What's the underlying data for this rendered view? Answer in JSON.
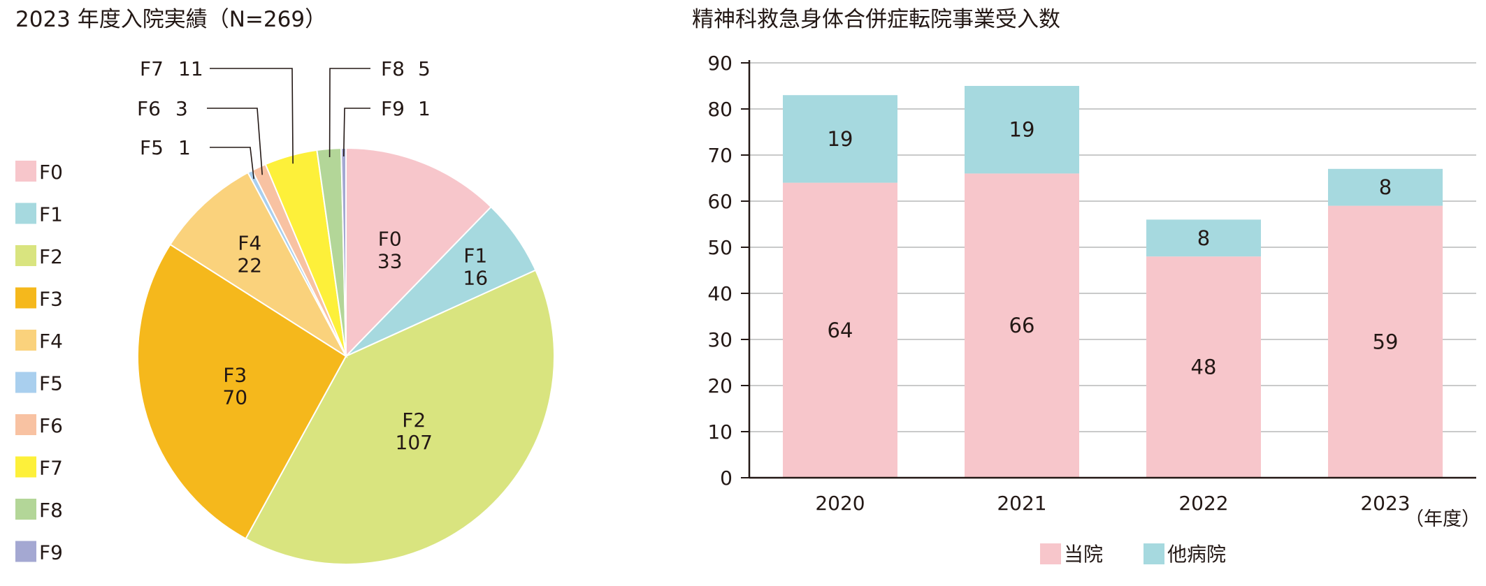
{
  "chart_data": [
    {
      "type": "pie",
      "title": "2023 年度入院実績（N=269）",
      "slices": [
        {
          "label": "F0",
          "value": 33,
          "color": "#F7C6CB"
        },
        {
          "label": "F1",
          "value": 16,
          "color": "#A6D9DF"
        },
        {
          "label": "F2",
          "value": 107,
          "color": "#D9E47F"
        },
        {
          "label": "F3",
          "value": 70,
          "color": "#F5B81C"
        },
        {
          "label": "F4",
          "value": 22,
          "color": "#FAD27C"
        },
        {
          "label": "F5",
          "value": 1,
          "color": "#A9CFEE"
        },
        {
          "label": "F6",
          "value": 3,
          "color": "#F8C2A2"
        },
        {
          "label": "F7",
          "value": 11,
          "color": "#FDF03A"
        },
        {
          "label": "F8",
          "value": 5,
          "color": "#B3D698"
        },
        {
          "label": "F9",
          "value": 1,
          "color": "#A4A8D2"
        }
      ],
      "legend": [
        "F0",
        "F1",
        "F2",
        "F3",
        "F4",
        "F5",
        "F6",
        "F7",
        "F8",
        "F9"
      ],
      "legend_position": "left"
    },
    {
      "type": "bar",
      "stacked": true,
      "title": "精神科救急身体合併症転院事業受入数",
      "categories": [
        "2020",
        "2021",
        "2022",
        "2023"
      ],
      "series": [
        {
          "name": "当院",
          "values": [
            64,
            66,
            48,
            59
          ],
          "color": "#F7C6CB"
        },
        {
          "name": "他病院",
          "values": [
            19,
            19,
            8,
            8
          ],
          "color": "#A6D9DF"
        }
      ],
      "xlabel": "（年度）",
      "ylim": [
        0,
        90
      ],
      "yticks": [
        0,
        10,
        20,
        30,
        40,
        50,
        60,
        70,
        80,
        90
      ],
      "grid": true,
      "legend_position": "bottom"
    }
  ]
}
